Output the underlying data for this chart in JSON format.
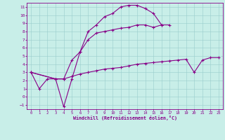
{
  "xlabel": "Windchill (Refroidissement éolien,°C)",
  "bg_color": "#c8eee8",
  "line_color": "#880088",
  "grid_color": "#99cccc",
  "xlim": [
    -0.5,
    23.5
  ],
  "ylim": [
    -1.5,
    11.5
  ],
  "xticks": [
    0,
    1,
    2,
    3,
    4,
    5,
    6,
    7,
    8,
    9,
    10,
    11,
    12,
    13,
    14,
    15,
    16,
    17,
    18,
    19,
    20,
    21,
    22,
    23
  ],
  "yticks": [
    -1,
    0,
    1,
    2,
    3,
    4,
    5,
    6,
    7,
    8,
    9,
    10,
    11
  ],
  "line_A_x": [
    0,
    1,
    2,
    3,
    4,
    5,
    6,
    7,
    8,
    9,
    10,
    11,
    12,
    13,
    14,
    15,
    16
  ],
  "line_A_y": [
    3.0,
    1.0,
    2.2,
    2.2,
    -1.2,
    2.2,
    5.5,
    8.0,
    8.8,
    9.8,
    10.2,
    11.0,
    11.2,
    11.2,
    10.8,
    10.2,
    8.8
  ],
  "line_B_x": [
    0,
    3,
    4,
    5,
    6,
    7,
    8,
    9,
    10,
    11,
    12,
    13,
    14,
    15,
    16,
    17
  ],
  "line_B_y": [
    3.0,
    2.2,
    2.2,
    4.5,
    5.5,
    7.0,
    7.8,
    8.0,
    8.2,
    8.4,
    8.5,
    8.8,
    8.8,
    8.5,
    8.8,
    8.8
  ],
  "line_C_x": [
    0,
    3,
    4,
    5,
    6,
    7,
    8,
    9,
    10,
    11,
    12,
    13,
    14,
    15,
    16,
    17,
    18,
    19,
    20,
    21,
    22,
    23
  ],
  "line_C_y": [
    3.0,
    2.2,
    2.2,
    2.5,
    2.8,
    3.0,
    3.2,
    3.4,
    3.5,
    3.6,
    3.8,
    4.0,
    4.1,
    4.2,
    4.3,
    4.4,
    4.5,
    4.6,
    3.0,
    4.5,
    4.8,
    4.8
  ]
}
